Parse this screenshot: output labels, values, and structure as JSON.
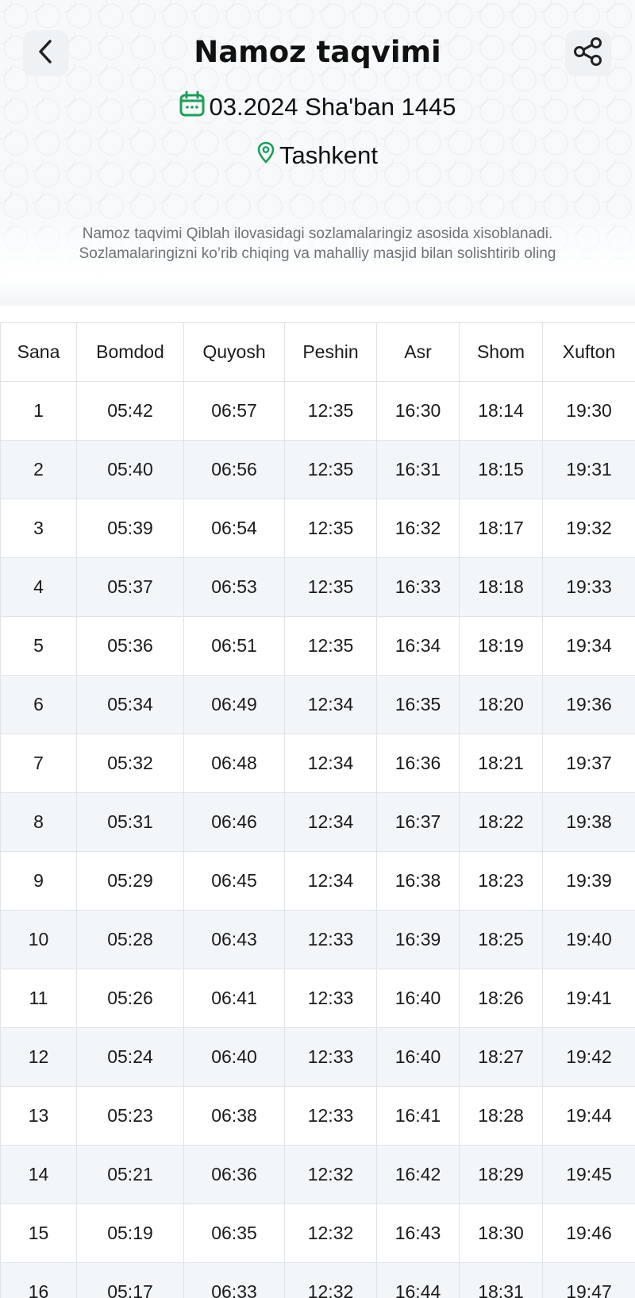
{
  "header": {
    "title": "Namoz taqvimi",
    "date_text": "03.2024 Sha'ban 1445",
    "location": "Tashkent",
    "note_line1": "Namoz taqvimi Qiblah ilovasidagi sozlamalaringiz asosida xisoblanadi.",
    "note_line2": "Sozlamalaringizni ko’rib chiqing va mahalliy masjid bilan solishtirib oling",
    "back_icon": "chevron-left-icon",
    "share_icon": "share-icon",
    "calendar_icon": "calendar-icon",
    "location_icon": "map-pin-icon",
    "accent_color": "#1e9e5a"
  },
  "table": {
    "columns": [
      "Sana",
      "Bomdod",
      "Quyosh",
      "Peshin",
      "Asr",
      "Shom",
      "Xufton"
    ],
    "rows": [
      [
        "1",
        "05:42",
        "06:57",
        "12:35",
        "16:30",
        "18:14",
        "19:30"
      ],
      [
        "2",
        "05:40",
        "06:56",
        "12:35",
        "16:31",
        "18:15",
        "19:31"
      ],
      [
        "3",
        "05:39",
        "06:54",
        "12:35",
        "16:32",
        "18:17",
        "19:32"
      ],
      [
        "4",
        "05:37",
        "06:53",
        "12:35",
        "16:33",
        "18:18",
        "19:33"
      ],
      [
        "5",
        "05:36",
        "06:51",
        "12:35",
        "16:34",
        "18:19",
        "19:34"
      ],
      [
        "6",
        "05:34",
        "06:49",
        "12:34",
        "16:35",
        "18:20",
        "19:36"
      ],
      [
        "7",
        "05:32",
        "06:48",
        "12:34",
        "16:36",
        "18:21",
        "19:37"
      ],
      [
        "8",
        "05:31",
        "06:46",
        "12:34",
        "16:37",
        "18:22",
        "19:38"
      ],
      [
        "9",
        "05:29",
        "06:45",
        "12:34",
        "16:38",
        "18:23",
        "19:39"
      ],
      [
        "10",
        "05:28",
        "06:43",
        "12:33",
        "16:39",
        "18:25",
        "19:40"
      ],
      [
        "11",
        "05:26",
        "06:41",
        "12:33",
        "16:40",
        "18:26",
        "19:41"
      ],
      [
        "12",
        "05:24",
        "06:40",
        "12:33",
        "16:40",
        "18:27",
        "19:42"
      ],
      [
        "13",
        "05:23",
        "06:38",
        "12:33",
        "16:41",
        "18:28",
        "19:44"
      ],
      [
        "14",
        "05:21",
        "06:36",
        "12:32",
        "16:42",
        "18:29",
        "19:45"
      ],
      [
        "15",
        "05:19",
        "06:35",
        "12:32",
        "16:43",
        "18:30",
        "19:46"
      ],
      [
        "16",
        "05:17",
        "06:33",
        "12:32",
        "16:44",
        "18:31",
        "19:47"
      ]
    ]
  }
}
